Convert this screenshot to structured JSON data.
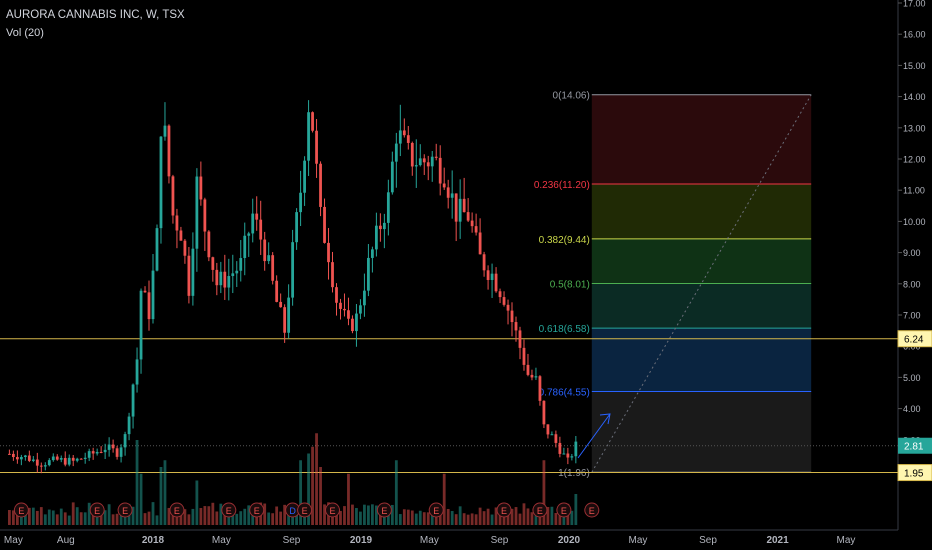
{
  "header": {
    "symbol_line": "AURORA CANNABIS INC, W, TSX",
    "volume_label": "Vol (20)"
  },
  "colors": {
    "up": "#26a69a",
    "down": "#ef5350",
    "background": "#000000",
    "hline": "#d4b64a"
  },
  "chart_data": {
    "type": "candlestick",
    "title": "AURORA CANNABIS INC, W, TSX",
    "y_axis": {
      "position": "right",
      "range": [
        1.6,
        17.0
      ],
      "ticks": [
        "17.00",
        "16.00",
        "15.00",
        "14.00",
        "13.00",
        "12.00",
        "11.00",
        "10.00",
        "9.00",
        "8.00",
        "7.00",
        "6.00",
        "5.00",
        "4.00",
        "3.00",
        "2.00"
      ]
    },
    "x_axis": {
      "ticks": [
        {
          "label": "May",
          "date": "2017-05-01"
        },
        {
          "label": "Aug",
          "date": "2017-08-01"
        },
        {
          "label": "2018",
          "date": "2018-01-01"
        },
        {
          "label": "May",
          "date": "2018-05-01"
        },
        {
          "label": "Sep",
          "date": "2018-09-01"
        },
        {
          "label": "2019",
          "date": "2019-01-01"
        },
        {
          "label": "May",
          "date": "2019-05-01"
        },
        {
          "label": "Sep",
          "date": "2019-09-01"
        },
        {
          "label": "2020",
          "date": "2020-01-01"
        },
        {
          "label": "May",
          "date": "2020-05-01"
        },
        {
          "label": "Sep",
          "date": "2020-09-01"
        },
        {
          "label": "2021",
          "date": "2021-01-01"
        },
        {
          "label": "May",
          "date": "2021-05-01"
        }
      ]
    },
    "grid": false,
    "price_path": [
      [
        "2017-04-24",
        2.55
      ],
      [
        "2017-05-22",
        2.45
      ],
      [
        "2017-06-19",
        2.25
      ],
      [
        "2017-07-17",
        2.35
      ],
      [
        "2017-08-14",
        2.3
      ],
      [
        "2017-09-11",
        2.5
      ],
      [
        "2017-10-09",
        2.75
      ],
      [
        "2017-10-30",
        2.6
      ],
      [
        "2017-11-13",
        3.1
      ],
      [
        "2017-11-27",
        4.8
      ],
      [
        "2017-12-04",
        5.6
      ],
      [
        "2017-12-11",
        7.8
      ],
      [
        "2017-12-25",
        7.1
      ],
      [
        "2018-01-08",
        9.5
      ],
      [
        "2018-01-15",
        13.2
      ],
      [
        "2018-01-22",
        12.7
      ],
      [
        "2018-02-05",
        10.2
      ],
      [
        "2018-02-19",
        9.7
      ],
      [
        "2018-03-05",
        7.9
      ],
      [
        "2018-03-19",
        11.2
      ],
      [
        "2018-04-02",
        9.8
      ],
      [
        "2018-04-23",
        8.0
      ],
      [
        "2018-05-14",
        8.25
      ],
      [
        "2018-06-04",
        8.6
      ],
      [
        "2018-06-25",
        10.2
      ],
      [
        "2018-07-16",
        9.1
      ],
      [
        "2018-08-06",
        7.4
      ],
      [
        "2018-08-20",
        6.5
      ],
      [
        "2018-09-03",
        9.0
      ],
      [
        "2018-09-17",
        11.0
      ],
      [
        "2018-10-01",
        13.8
      ],
      [
        "2018-10-08",
        13.1
      ],
      [
        "2018-10-22",
        10.1
      ],
      [
        "2018-11-05",
        9.0
      ],
      [
        "2018-11-19",
        7.5
      ],
      [
        "2018-12-10",
        6.6
      ],
      [
        "2018-12-24",
        6.9
      ],
      [
        "2019-01-14",
        8.6
      ],
      [
        "2019-02-04",
        9.9
      ],
      [
        "2019-02-18",
        10.7
      ],
      [
        "2019-03-04",
        12.9
      ],
      [
        "2019-03-25",
        12.1
      ],
      [
        "2019-04-15",
        11.9
      ],
      [
        "2019-05-06",
        12.0
      ],
      [
        "2019-05-27",
        11.6
      ],
      [
        "2019-06-17",
        10.3
      ],
      [
        "2019-07-08",
        10.2
      ],
      [
        "2019-07-29",
        8.8
      ],
      [
        "2019-08-19",
        8.3
      ],
      [
        "2019-09-09",
        7.6
      ],
      [
        "2019-09-30",
        6.4
      ],
      [
        "2019-10-21",
        5.1
      ],
      [
        "2019-11-04",
        4.9
      ],
      [
        "2019-11-18",
        3.4
      ],
      [
        "2019-12-02",
        3.1
      ],
      [
        "2019-12-16",
        2.7
      ],
      [
        "2019-12-30",
        2.3
      ],
      [
        "2020-01-13",
        2.81
      ]
    ],
    "volume_spikes": [
      [
        "2017-12-04",
        0.6
      ],
      [
        "2017-12-11",
        0.35
      ],
      [
        "2018-01-15",
        0.4
      ],
      [
        "2018-01-22",
        0.45
      ],
      [
        "2018-03-19",
        0.3
      ],
      [
        "2018-09-17",
        0.45
      ],
      [
        "2018-10-01",
        0.5
      ],
      [
        "2018-10-08",
        0.55
      ],
      [
        "2018-10-15",
        0.65
      ],
      [
        "2018-10-22",
        0.4
      ],
      [
        "2018-12-10",
        0.35
      ],
      [
        "2019-03-04",
        0.45
      ],
      [
        "2019-05-27",
        0.35
      ],
      [
        "2019-11-18",
        0.45
      ],
      [
        "2020-01-13",
        0.2
      ]
    ],
    "fibonacci": {
      "start_date": "2020-02-10",
      "end_date": "2021-03-01",
      "levels": [
        {
          "label": "0(14.06)",
          "value": 14.06,
          "color": "#9598a1",
          "fill": "#2b0a0c"
        },
        {
          "label": "0.236(11.20)",
          "value": 11.2,
          "color": "#f23645",
          "fill": "#202a05"
        },
        {
          "label": "0.382(9.44)",
          "value": 9.44,
          "color": "#c9d64a",
          "fill": "#0f3215"
        },
        {
          "label": "0.5(8.01)",
          "value": 8.01,
          "color": "#4caf50",
          "fill": "#0b2b24"
        },
        {
          "label": "0.618(6.58)",
          "value": 6.58,
          "color": "#26a69a",
          "fill": "#0a2440"
        },
        {
          "label": "0.786(4.55)",
          "value": 4.55,
          "color": "#2962ff",
          "fill": "#1a1a1a"
        },
        {
          "label": "1(1.96)",
          "value": 1.96,
          "color": "#9598a1",
          "fill": null
        }
      ]
    },
    "horizontal_lines": [
      {
        "value": 6.24,
        "label": "6.24",
        "style": "solid"
      },
      {
        "value": 1.95,
        "label": "1.95",
        "style": "solid"
      },
      {
        "value": 2.81,
        "label": "2.81",
        "style": "dotted"
      }
    ],
    "earnings_markers": [
      {
        "date": "2017-05-15",
        "label": "E"
      },
      {
        "date": "2017-09-25",
        "label": "E"
      },
      {
        "date": "2017-11-13",
        "label": "E"
      },
      {
        "date": "2018-02-12",
        "label": "E"
      },
      {
        "date": "2018-05-14",
        "label": "E"
      },
      {
        "date": "2018-07-02",
        "label": "E"
      },
      {
        "date": "2018-09-03",
        "label": "D"
      },
      {
        "date": "2018-09-24",
        "label": "E"
      },
      {
        "date": "2018-11-12",
        "label": "E"
      },
      {
        "date": "2019-02-11",
        "label": "E"
      },
      {
        "date": "2019-05-13",
        "label": "E"
      },
      {
        "date": "2019-09-09",
        "label": "E"
      },
      {
        "date": "2019-11-11",
        "label": "E"
      },
      {
        "date": "2019-12-23",
        "label": "E"
      },
      {
        "date": "2020-02-10",
        "label": "E"
      }
    ]
  }
}
